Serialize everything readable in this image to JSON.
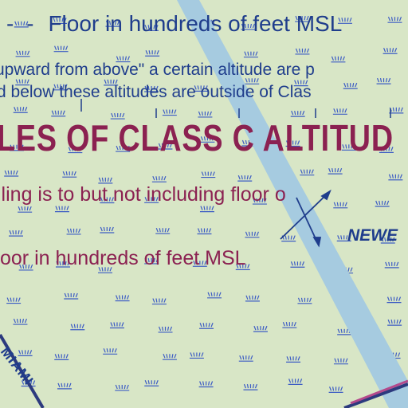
{
  "legend": {
    "floor_symbol": "- -",
    "floor_text": "Floor in hundreds of feet MSL",
    "note_line1": "upward from above\" a certain altitude are p",
    "note_line2": "d below these altitudes are outside of Clas",
    "headline": "LES OF CLASS C ALTITUD",
    "ceiling_text": "iling is to but not including floor o",
    "floor_text_2": "oor in hundreds of feet MSL"
  },
  "places": {
    "newe": "NEWE",
    "miami": "MIAMI"
  },
  "colors": {
    "background": "#d8e6c6",
    "water_band": "#a6cbe0",
    "navy_text": "#1f3d8c",
    "maroon_text": "#8b2151",
    "marsh_symbol": "#3c5cc4",
    "road": "#2c3a7e"
  }
}
